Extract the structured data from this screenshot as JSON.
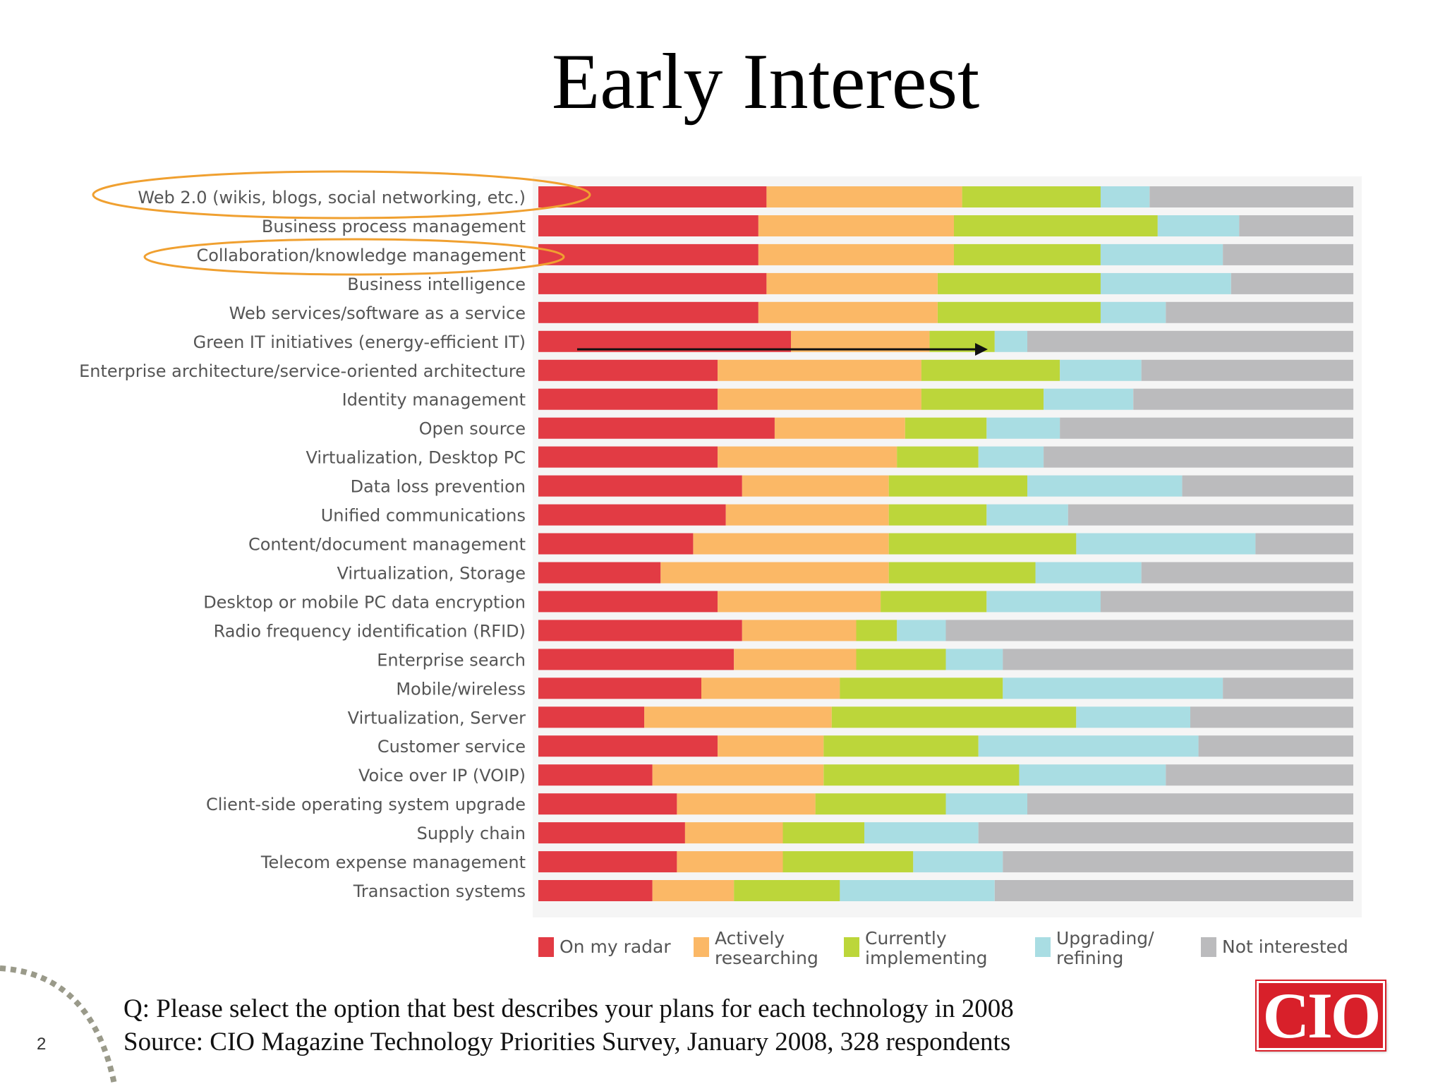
{
  "slide": {
    "title": "Early Interest",
    "question": "Q: Please select the option that best describes your plans for each technology in 2008",
    "source": "Source: CIO Magazine Technology Priorities Survey, January 2008, 328 respondents",
    "page_number": "2",
    "logo_text": "CIO"
  },
  "colors": {
    "on_my_radar": "#e23b44",
    "actively_researching": "#fbb866",
    "currently_implementing": "#bcd63a",
    "upgrading_refining": "#a9dde3",
    "not_interested": "#bbbbbd",
    "highlight_ellipse": "#f0a030",
    "logo_red": "#d8202a"
  },
  "legend": [
    {
      "label": "On my radar",
      "color": "#e23b44"
    },
    {
      "label": "Actively\nresearching",
      "color": "#fbb866"
    },
    {
      "label": "Currently\nimplementing",
      "color": "#bcd63a"
    },
    {
      "label": "Upgrading/\nrefining",
      "color": "#a9dde3"
    },
    {
      "label": "Not interested",
      "color": "#bbbbbd"
    }
  ],
  "chart_data": {
    "type": "bar",
    "orientation": "horizontal",
    "stacked": true,
    "normalized": true,
    "xlim": [
      0,
      100
    ],
    "grid": false,
    "legend_position": "bottom",
    "highlighted_categories": [
      "Web 2.0 (wikis, blogs, social networking, etc.)",
      "Collaboration/knowledge management"
    ],
    "arrow_category": "Green IT initiatives (energy-efficient IT)",
    "categories": [
      "Web 2.0 (wikis, blogs, social networking, etc.)",
      "Business process management",
      "Collaboration/knowledge management",
      "Business intelligence",
      "Web services/software as a service",
      "Green IT initiatives (energy-efficient IT)",
      "Enterprise architecture/service-oriented architecture",
      "Identity management",
      "Open source",
      "Virtualization, Desktop PC",
      "Data loss prevention",
      "Unified communications",
      "Content/document management",
      "Virtualization, Storage",
      "Desktop or mobile PC data encryption",
      "Radio frequency identification (RFID)",
      "Enterprise search",
      "Mobile/wireless",
      "Virtualization, Server",
      "Customer service",
      "Voice over IP (VOIP)",
      "Client-side operating system upgrade",
      "Supply chain",
      "Telecom expense management",
      "Transaction systems"
    ],
    "series": [
      {
        "name": "On my radar",
        "values": [
          28,
          27,
          27,
          28,
          27,
          31,
          22,
          22,
          29,
          22,
          25,
          23,
          19,
          15,
          22,
          25,
          24,
          20,
          13,
          22,
          14,
          17,
          18,
          17,
          14
        ]
      },
      {
        "name": "Actively researching",
        "values": [
          24,
          24,
          24,
          21,
          22,
          17,
          25,
          25,
          16,
          22,
          18,
          20,
          24,
          28,
          20,
          14,
          15,
          17,
          23,
          13,
          21,
          17,
          12,
          13,
          10
        ]
      },
      {
        "name": "Currently implementing",
        "values": [
          17,
          25,
          18,
          20,
          20,
          8,
          17,
          15,
          10,
          10,
          17,
          12,
          23,
          18,
          13,
          5,
          11,
          20,
          30,
          19,
          24,
          16,
          10,
          16,
          13
        ]
      },
      {
        "name": "Upgrading/refining",
        "values": [
          6,
          10,
          15,
          16,
          8,
          4,
          10,
          11,
          9,
          8,
          19,
          10,
          22,
          13,
          14,
          6,
          7,
          27,
          14,
          27,
          18,
          10,
          14,
          11,
          19
        ]
      },
      {
        "name": "Not interested",
        "values": [
          25,
          14,
          16,
          15,
          23,
          40,
          26,
          27,
          36,
          38,
          21,
          35,
          12,
          26,
          31,
          50,
          43,
          16,
          20,
          19,
          23,
          40,
          46,
          43,
          44
        ]
      }
    ]
  }
}
